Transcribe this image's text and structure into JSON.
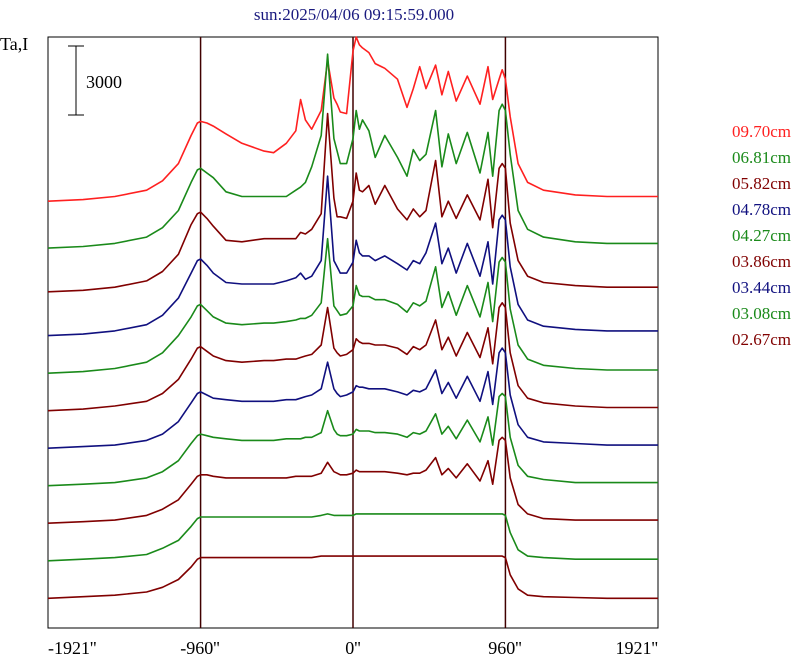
{
  "chart_data": {
    "type": "line",
    "title": "sun:2025/04/06 09:15:59.000",
    "ylabel": "Ta,I",
    "scale_bar_label": "3000",
    "scale_bar_value": 3000,
    "x_ticks": [
      "-1921''",
      "-960''",
      "0''",
      "960''",
      "1921''"
    ],
    "x_tick_values": [
      -1921,
      -960,
      0,
      960,
      1921
    ],
    "xlim": [
      -1921,
      1921
    ],
    "vlines": [
      -960,
      0,
      960
    ],
    "ylim": [
      -300,
      37500
    ],
    "x": [
      -1921,
      -1700,
      -1500,
      -1300,
      -1200,
      -1100,
      -1020,
      -980,
      -960,
      -920,
      -880,
      -800,
      -700,
      -560,
      -500,
      -420,
      -360,
      -330,
      -300,
      -260,
      -200,
      -160,
      -120,
      -100,
      -80,
      -40,
      0,
      20,
      40,
      60,
      100,
      140,
      200,
      280,
      340,
      380,
      420,
      460,
      520,
      560,
      600,
      650,
      720,
      800,
      850,
      880,
      920,
      940,
      960,
      990,
      1040,
      1100,
      1200,
      1400,
      1600,
      1921
    ],
    "series": [
      {
        "name": "09.70cm",
        "color": "#ff2020",
        "offset": 27000,
        "values": [
          0,
          100,
          300,
          700,
          1300,
          2400,
          4200,
          5000,
          5100,
          5000,
          4800,
          4300,
          3700,
          3200,
          3100,
          3700,
          4500,
          6500,
          5200,
          4600,
          5800,
          9000,
          6600,
          6200,
          5700,
          5600,
          9600,
          10500,
          10000,
          9800,
          9500,
          8800,
          8500,
          7800,
          6000,
          7200,
          8600,
          7200,
          8700,
          6800,
          8300,
          6400,
          8000,
          6200,
          8600,
          6500,
          7800,
          8400,
          7800,
          5400,
          2400,
          1200,
          700,
          400,
          300,
          300
        ]
      },
      {
        "name": "06.81cm",
        "color": "#1a8a1a",
        "offset": 24000,
        "values": [
          0,
          100,
          300,
          700,
          1300,
          2400,
          4200,
          5000,
          5100,
          4800,
          4500,
          3600,
          3300,
          3300,
          3300,
          3300,
          3700,
          3900,
          4200,
          5200,
          7200,
          12400,
          7000,
          6200,
          5400,
          5400,
          7000,
          8800,
          7600,
          8200,
          7500,
          5800,
          7200,
          5800,
          4600,
          6300,
          5600,
          6000,
          8800,
          5200,
          7300,
          5400,
          7400,
          4800,
          7400,
          4600,
          8800,
          9200,
          8800,
          6000,
          2400,
          1200,
          700,
          400,
          300,
          300
        ]
      },
      {
        "name": "05.82cm",
        "color": "#800000",
        "offset": 21200,
        "values": [
          0,
          100,
          300,
          700,
          1300,
          2400,
          4300,
          5000,
          5100,
          4700,
          4200,
          3300,
          3200,
          3400,
          3400,
          3400,
          3400,
          3800,
          3700,
          4000,
          5000,
          11400,
          6000,
          4800,
          4800,
          4700,
          5800,
          7600,
          6500,
          6400,
          6800,
          5600,
          6800,
          5300,
          4600,
          5300,
          4800,
          5200,
          8400,
          4800,
          5800,
          4700,
          6200,
          4600,
          7200,
          4100,
          7900,
          8200,
          7900,
          4400,
          2000,
          1000,
          600,
          400,
          300,
          300
        ]
      },
      {
        "name": "04.78cm",
        "color": "#10107f",
        "offset": 18400,
        "values": [
          0,
          100,
          300,
          700,
          1300,
          2400,
          4000,
          4800,
          4900,
          4500,
          4000,
          3400,
          3300,
          3300,
          3300,
          3500,
          3700,
          4000,
          3600,
          3800,
          4800,
          10200,
          4800,
          4400,
          4000,
          4000,
          4700,
          6100,
          5300,
          5100,
          5100,
          4800,
          5100,
          4600,
          4200,
          4800,
          4600,
          5300,
          7200,
          4600,
          5600,
          4000,
          5900,
          3800,
          6000,
          3300,
          7400,
          7700,
          7400,
          4400,
          2000,
          1000,
          600,
          400,
          300,
          300
        ]
      },
      {
        "name": "04.27cm",
        "color": "#1a8a1a",
        "offset": 16000,
        "values": [
          0,
          100,
          300,
          700,
          1300,
          2400,
          3600,
          4300,
          4400,
          4000,
          3600,
          3200,
          3100,
          3200,
          3200,
          3300,
          3400,
          3500,
          3500,
          3700,
          4500,
          8600,
          4300,
          4000,
          3700,
          3800,
          4300,
          5600,
          5000,
          4900,
          4900,
          4700,
          4700,
          4400,
          3900,
          4500,
          4300,
          4600,
          6800,
          4200,
          5200,
          3700,
          5600,
          3600,
          5800,
          3300,
          7100,
          7400,
          7100,
          4100,
          1800,
          900,
          500,
          300,
          200,
          200
        ]
      },
      {
        "name": "03.86cm",
        "color": "#800000",
        "offset": 13600,
        "values": [
          0,
          100,
          300,
          600,
          1100,
          2000,
          3300,
          4000,
          4100,
          3800,
          3500,
          3200,
          3100,
          3200,
          3200,
          3300,
          3300,
          3400,
          3500,
          3600,
          4200,
          6600,
          4000,
          3700,
          3500,
          3600,
          3900,
          4600,
          4400,
          4300,
          4300,
          4200,
          4200,
          4000,
          3600,
          4100,
          3900,
          4200,
          5800,
          3900,
          4700,
          3500,
          5000,
          3400,
          5300,
          3000,
          6600,
          6900,
          6600,
          3700,
          1600,
          800,
          500,
          300,
          200,
          200
        ]
      },
      {
        "name": "03.44cm",
        "color": "#10107f",
        "offset": 11200,
        "values": [
          0,
          100,
          200,
          500,
          900,
          1700,
          2900,
          3500,
          3600,
          3400,
          3200,
          3100,
          3000,
          3000,
          3000,
          3100,
          3100,
          3200,
          3300,
          3400,
          3800,
          5500,
          3800,
          3500,
          3300,
          3400,
          3600,
          4000,
          3900,
          3900,
          3800,
          3800,
          3800,
          3600,
          3400,
          3700,
          3600,
          3800,
          5000,
          3500,
          4200,
          3200,
          4600,
          3000,
          4900,
          2800,
          6100,
          6400,
          6100,
          3400,
          1500,
          700,
          400,
          300,
          200,
          200
        ]
      },
      {
        "name": "03.08cm",
        "color": "#1a8a1a",
        "offset": 8800,
        "values": [
          0,
          100,
          200,
          500,
          900,
          1600,
          2700,
          3200,
          3300,
          3200,
          3100,
          3000,
          2900,
          2900,
          2900,
          3000,
          3000,
          3000,
          3100,
          3100,
          3400,
          4800,
          3600,
          3300,
          3200,
          3200,
          3300,
          3600,
          3500,
          3500,
          3500,
          3400,
          3400,
          3300,
          3100,
          3400,
          3300,
          3500,
          4600,
          3300,
          3800,
          3000,
          4200,
          2800,
          4400,
          2600,
          5700,
          5900,
          5700,
          3100,
          1300,
          600,
          400,
          200,
          200,
          200
        ]
      },
      {
        "name": "02.67cm",
        "color": "#800000",
        "offset": 6400,
        "values": [
          0,
          100,
          200,
          500,
          900,
          1500,
          2500,
          3000,
          3100,
          3100,
          3000,
          2900,
          2900,
          2900,
          2900,
          2900,
          3000,
          3000,
          3000,
          3000,
          3200,
          3900,
          3300,
          3200,
          3100,
          3100,
          3200,
          3400,
          3300,
          3300,
          3300,
          3300,
          3300,
          3200,
          3100,
          3200,
          3200,
          3400,
          4200,
          3100,
          3500,
          2900,
          3800,
          2700,
          4000,
          2500,
          5300,
          5500,
          5300,
          2900,
          1200,
          600,
          300,
          200,
          200,
          200
        ]
      },
      {
        "name": "",
        "color": "#1a8a1a",
        "offset": 4000,
        "values": [
          0,
          100,
          200,
          400,
          800,
          1300,
          2200,
          2700,
          2800,
          2800,
          2800,
          2800,
          2800,
          2800,
          2800,
          2800,
          2800,
          2800,
          2800,
          2800,
          2900,
          3000,
          2900,
          2900,
          2900,
          2900,
          2900,
          3000,
          3000,
          3000,
          3000,
          3000,
          3000,
          3000,
          3000,
          3000,
          3000,
          3000,
          3000,
          3000,
          3000,
          3000,
          3000,
          3000,
          3000,
          3000,
          3000,
          3000,
          2900,
          1800,
          700,
          300,
          200,
          100,
          100,
          100
        ]
      },
      {
        "name": "",
        "color": "#800000",
        "offset": 1600,
        "values": [
          0,
          100,
          200,
          400,
          700,
          1200,
          2000,
          2500,
          2600,
          2600,
          2600,
          2600,
          2600,
          2600,
          2600,
          2600,
          2600,
          2600,
          2600,
          2600,
          2700,
          2700,
          2700,
          2700,
          2700,
          2700,
          2700,
          2700,
          2700,
          2700,
          2700,
          2700,
          2700,
          2700,
          2700,
          2700,
          2700,
          2700,
          2700,
          2700,
          2700,
          2700,
          2700,
          2700,
          2700,
          2700,
          2700,
          2700,
          2600,
          1500,
          600,
          200,
          100,
          50,
          0,
          0
        ]
      }
    ]
  }
}
